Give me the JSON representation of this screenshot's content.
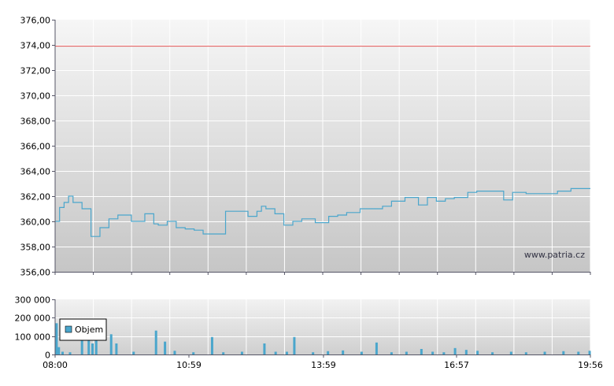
{
  "chart_data": [
    {
      "type": "line",
      "watermark": "www.patria.cz",
      "ylim": [
        356,
        376
      ],
      "y_ticks": [
        "376,00",
        "374,00",
        "372,00",
        "370,00",
        "368,00",
        "366,00",
        "364,00",
        "362,00",
        "360,00",
        "358,00",
        "356,00"
      ],
      "reference_line": {
        "value": 373.9,
        "color": "#e05050"
      },
      "x_range": [
        "08:00",
        "19:56"
      ],
      "series": [
        {
          "color": "#4aa6cc",
          "x": [
            "08:00",
            "08:06",
            "08:12",
            "08:18",
            "08:24",
            "08:36",
            "08:48",
            "09:00",
            "09:12",
            "09:24",
            "09:42",
            "10:00",
            "10:12",
            "10:18",
            "10:30",
            "10:42",
            "10:54",
            "11:06",
            "11:18",
            "11:30",
            "11:48",
            "12:18",
            "12:30",
            "12:36",
            "12:42",
            "12:54",
            "13:06",
            "13:18",
            "13:30",
            "13:48",
            "14:06",
            "14:18",
            "14:30",
            "14:48",
            "15:00",
            "15:18",
            "15:30",
            "15:48",
            "16:06",
            "16:18",
            "16:30",
            "16:42",
            "16:54",
            "17:12",
            "17:24",
            "17:30",
            "17:48",
            "18:00",
            "18:12",
            "18:18",
            "18:30",
            "18:42",
            "19:00",
            "19:12",
            "19:30",
            "19:56"
          ],
          "y": [
            360.0,
            361.1,
            361.5,
            362.0,
            361.5,
            361.0,
            358.8,
            359.5,
            360.2,
            360.5,
            360.0,
            360.6,
            359.8,
            359.7,
            360.0,
            359.5,
            359.4,
            359.3,
            359.0,
            359.0,
            360.8,
            360.4,
            360.8,
            361.2,
            361.0,
            360.6,
            359.7,
            360.0,
            360.2,
            359.9,
            360.4,
            360.5,
            360.7,
            361.0,
            361.0,
            361.2,
            361.6,
            361.9,
            361.3,
            361.9,
            361.6,
            361.8,
            361.9,
            362.3,
            362.4,
            362.4,
            362.4,
            361.7,
            362.3,
            362.3,
            362.2,
            362.2,
            362.2,
            362.4,
            362.6,
            362.6
          ]
        }
      ]
    },
    {
      "type": "bar",
      "ylim": [
        0,
        300000
      ],
      "y_ticks": [
        "300 000",
        "200 000",
        "100 000",
        "0"
      ],
      "x_ticks": [
        "08:00",
        "10:59",
        "13:59",
        "16:57",
        "19:56"
      ],
      "legend": {
        "label": "Objem",
        "position": "top-left",
        "color": "#4aa6cc"
      },
      "series": [
        {
          "name": "Objem",
          "color": "#4aa6cc",
          "x": [
            "08:02",
            "08:05",
            "08:10",
            "08:20",
            "08:36",
            "08:45",
            "08:50",
            "08:55",
            "09:15",
            "09:22",
            "09:45",
            "10:15",
            "10:27",
            "10:40",
            "11:05",
            "11:30",
            "11:45",
            "12:10",
            "12:40",
            "12:55",
            "13:10",
            "13:20",
            "13:45",
            "14:05",
            "14:25",
            "14:50",
            "15:10",
            "15:30",
            "15:50",
            "16:10",
            "16:25",
            "16:40",
            "16:55",
            "17:10",
            "17:25",
            "17:45",
            "18:10",
            "18:30",
            "18:55",
            "19:20",
            "19:40",
            "19:55"
          ],
          "y": [
            170000,
            40000,
            15000,
            12000,
            180000,
            180000,
            60000,
            180000,
            110000,
            60000,
            15000,
            130000,
            70000,
            20000,
            12000,
            95000,
            12000,
            15000,
            60000,
            15000,
            15000,
            95000,
            12000,
            18000,
            22000,
            15000,
            65000,
            12000,
            15000,
            30000,
            15000,
            12000,
            35000,
            25000,
            20000,
            12000,
            15000,
            12000,
            15000,
            18000,
            15000,
            20000
          ]
        }
      ]
    }
  ]
}
